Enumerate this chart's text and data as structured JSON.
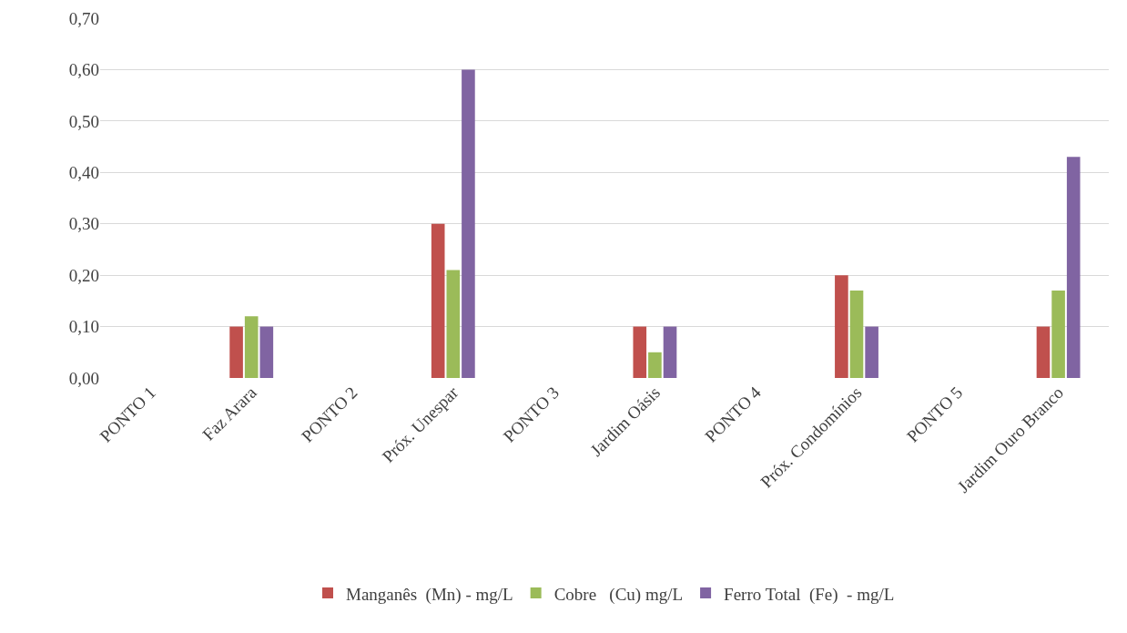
{
  "chart_data": {
    "type": "bar",
    "categories": [
      "PONTO 1",
      "Faz Arara",
      "PONTO 2",
      "Próx. Unespar",
      "PONTO 3",
      "Jardim Oásis",
      "PONTO 4",
      "Próx. Condomínios",
      "PONTO 5",
      "Jardim Ouro Branco"
    ],
    "series": [
      {
        "name": "Manganês  (Mn) - mg/L",
        "color": "#c0504d",
        "values": [
          null,
          0.1,
          null,
          0.3,
          null,
          0.1,
          null,
          0.2,
          null,
          0.1
        ]
      },
      {
        "name": "Cobre   (Cu) mg/L",
        "color": "#9bbb59",
        "values": [
          null,
          0.12,
          null,
          0.21,
          null,
          0.05,
          null,
          0.17,
          null,
          0.17
        ]
      },
      {
        "name": "Ferro Total  (Fe)  - mg/L",
        "color": "#8064a2",
        "values": [
          null,
          0.1,
          null,
          0.6,
          null,
          0.1,
          null,
          0.1,
          null,
          0.43
        ]
      }
    ],
    "ylim": [
      0,
      0.7
    ],
    "yticks": [
      {
        "value": 0,
        "label": "0,00"
      },
      {
        "value": 0.1,
        "label": "0,10"
      },
      {
        "value": 0.2,
        "label": "0,20"
      },
      {
        "value": 0.3,
        "label": "0,30"
      },
      {
        "value": 0.4,
        "label": "0,40"
      },
      {
        "value": 0.5,
        "label": "0,50"
      },
      {
        "value": 0.6,
        "label": "0,60"
      },
      {
        "value": 0.7,
        "label": "0,70"
      }
    ],
    "grid": "y",
    "legend": "bottom"
  }
}
